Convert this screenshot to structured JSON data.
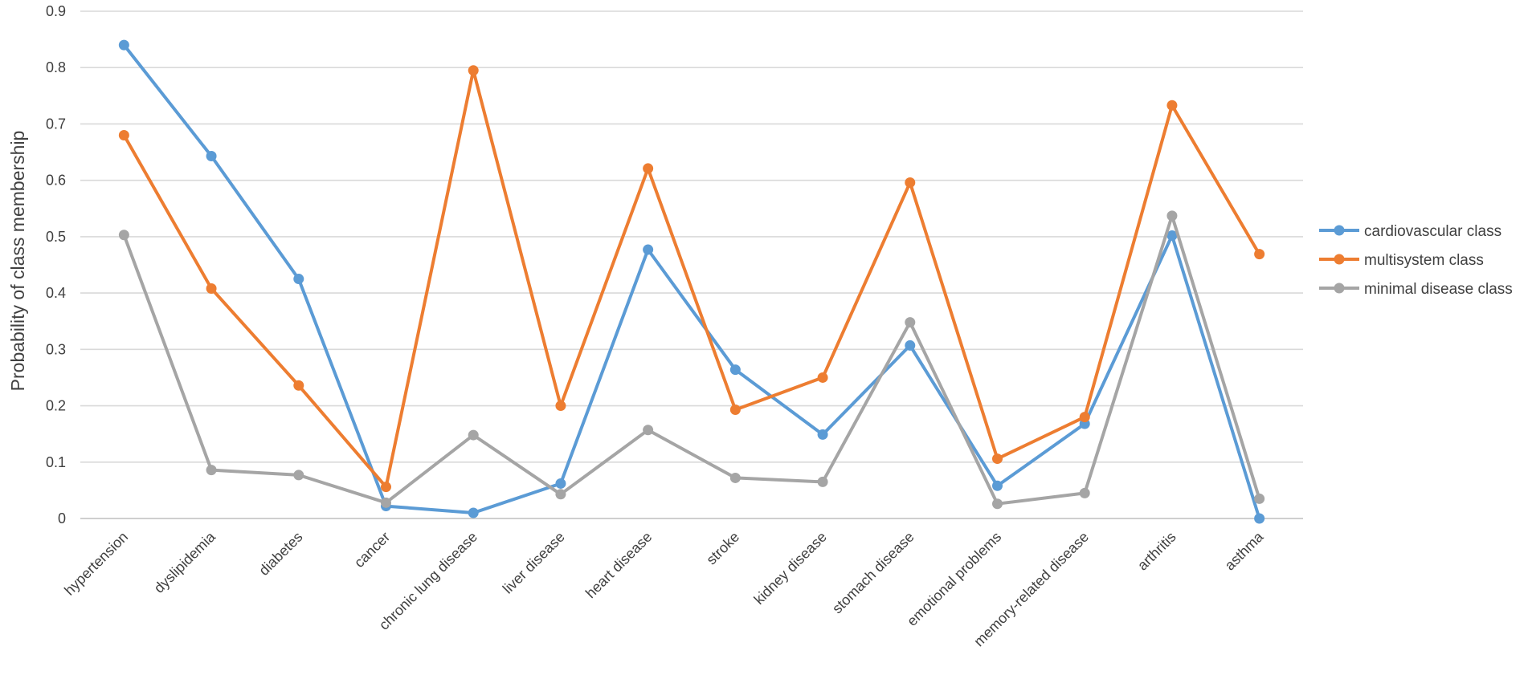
{
  "chart_data": {
    "type": "line",
    "title": "",
    "xlabel": "",
    "ylabel": "Probability of class membership",
    "ylim": [
      0,
      0.9
    ],
    "yticks": [
      "0",
      "0.1",
      "0.2",
      "0.3",
      "0.4",
      "0.5",
      "0.6",
      "0.7",
      "0.8",
      "0.9"
    ],
    "grid": true,
    "legend_position": "right",
    "categories": [
      "hypertension",
      "dyslipidemia",
      "diabetes",
      "cancer",
      "chronic lung disease",
      "liver disease",
      "heart disease",
      "stroke",
      "kidney disease",
      "stomach disease",
      "emotional problems",
      "memory-related disease",
      "arthritis",
      "asthma"
    ],
    "series": [
      {
        "name": "cardiovascular class",
        "color": "#5b9bd5",
        "values": [
          0.84,
          0.643,
          0.425,
          0.022,
          0.01,
          0.062,
          0.477,
          0.264,
          0.149,
          0.307,
          0.058,
          0.168,
          0.502,
          0.0
        ]
      },
      {
        "name": "multisystem class",
        "color": "#ed7d31",
        "values": [
          0.68,
          0.408,
          0.236,
          0.056,
          0.795,
          0.2,
          0.621,
          0.193,
          0.25,
          0.596,
          0.106,
          0.18,
          0.733,
          0.469
        ]
      },
      {
        "name": "minimal disease class",
        "color": "#a5a5a5",
        "values": [
          0.503,
          0.086,
          0.077,
          0.028,
          0.148,
          0.043,
          0.157,
          0.072,
          0.065,
          0.348,
          0.026,
          0.045,
          0.537,
          0.035
        ]
      }
    ]
  }
}
